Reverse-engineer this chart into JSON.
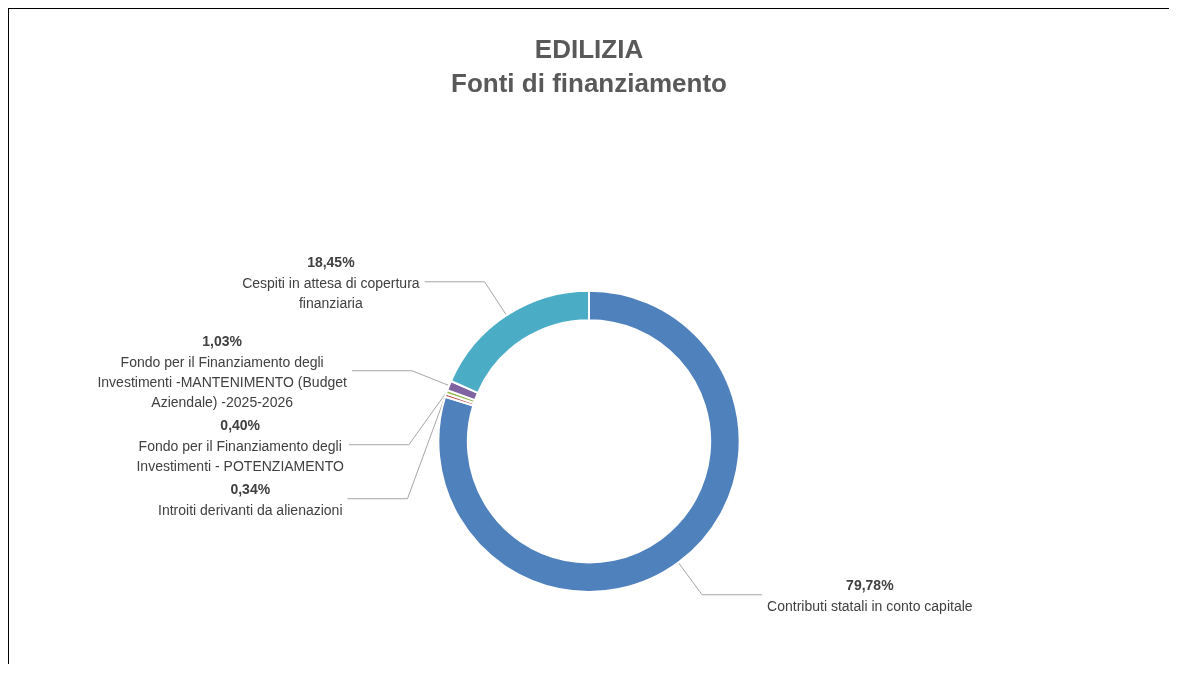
{
  "chart_data": {
    "type": "donut",
    "title": "EDILIZIA",
    "subtitle": "Fonti di finanziamento",
    "categories": [
      "Contributi statali in conto capitale",
      "Introiti derivanti da alienazioni",
      "Fondo per il Finanziamento degli Investimenti - POTENZIAMENTO",
      "Fondo per il Finanziamento degli Investimenti -MANTENIMENTO (Budget Aziendale) -2025-2026",
      "Cespiti in attesa di copertura finanziaria"
    ],
    "values": [
      79.78,
      0.34,
      0.4,
      1.03,
      18.45
    ],
    "value_labels": [
      "79,78%",
      "0,34%",
      "0,40%",
      "1,03%",
      "18,45%"
    ],
    "colors": [
      "#4f81bd",
      "#c0504d",
      "#9bbb59",
      "#8064a2",
      "#4bacc6"
    ],
    "legend": false
  }
}
